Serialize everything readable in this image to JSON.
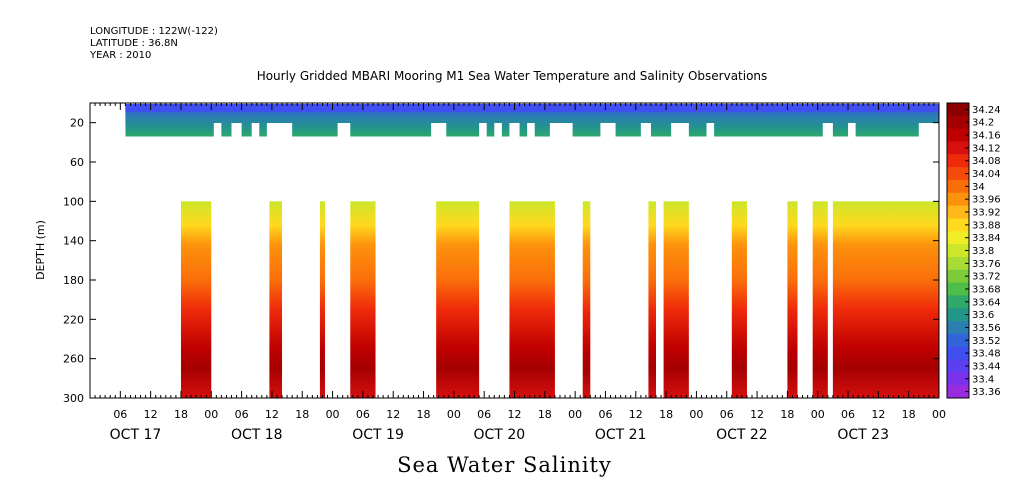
{
  "header": {
    "longitude": "LONGITUDE : 122W(-122)",
    "latitude": "LATITUDE : 36.8N",
    "year": "YEAR : 2010",
    "title": "Hourly Gridded MBARI Mooring M1 Sea Water Temperature and Salinity Observations"
  },
  "chart_data": {
    "type": "heatmap",
    "title": "Hourly Gridded MBARI Mooring M1 Sea Water Temperature and Salinity Observations",
    "xlabel": "Sea Water Salinity",
    "ylabel": "DEPTH (m)",
    "ylim": [
      300,
      0
    ],
    "y_ticks": [
      20,
      60,
      100,
      140,
      180,
      220,
      260,
      300
    ],
    "x_range_hours": [
      0,
      168
    ],
    "hour_ticks": [
      "06",
      "12",
      "18",
      "00",
      "06",
      "12",
      "18",
      "00",
      "06",
      "12",
      "18",
      "00",
      "06",
      "12",
      "18",
      "00",
      "06",
      "12",
      "18",
      "00",
      "06",
      "12",
      "18",
      "00",
      "06",
      "12",
      "18",
      "00"
    ],
    "days": [
      "OCT 17",
      "OCT 18",
      "OCT 19",
      "OCT 20",
      "OCT 21",
      "OCT 22",
      "OCT 23"
    ],
    "colorbar": {
      "labels": [
        "34.24",
        "34.2",
        "34.16",
        "34.12",
        "34.08",
        "34.04",
        "34",
        "33.96",
        "33.92",
        "33.88",
        "33.84",
        "33.8",
        "33.76",
        "33.72",
        "33.68",
        "33.64",
        "33.6",
        "33.56",
        "33.52",
        "33.48",
        "33.44",
        "33.4",
        "33.36"
      ],
      "colors": [
        "#8b0000",
        "#a50000",
        "#be0000",
        "#d70f0f",
        "#ef2a0a",
        "#f54b0a",
        "#fa6e0a",
        "#fd930d",
        "#ffb71a",
        "#ffd91e",
        "#f0ed24",
        "#cde62a",
        "#a8dc35",
        "#7ccc3a",
        "#4fbd4a",
        "#2fa86a",
        "#23968a",
        "#2a7fb0",
        "#2f65d8",
        "#3f4ff0",
        "#5a40f0",
        "#7a33ea",
        "#9a2ce0"
      ]
    },
    "surface_layer": {
      "depth_range": [
        10,
        30
      ],
      "missing_hour_ranges": [
        [
          0,
          7
        ],
        [
          5,
          7
        ],
        [
          24.5,
          26
        ],
        [
          28,
          30
        ],
        [
          32,
          33.5
        ],
        [
          35,
          40
        ],
        [
          49,
          51.5
        ],
        [
          67.5,
          70.5
        ],
        [
          77,
          78.5
        ],
        [
          80,
          81.5
        ],
        [
          83,
          85
        ],
        [
          86.5,
          88
        ],
        [
          91,
          95.5
        ],
        [
          101,
          104
        ],
        [
          109,
          111
        ],
        [
          115,
          118.5
        ],
        [
          122,
          123.5
        ],
        [
          145,
          147
        ],
        [
          150,
          151.5
        ],
        [
          164,
          168
        ]
      ]
    },
    "deep_layer": {
      "depth_range": [
        100,
        300
      ],
      "data_hour_ranges": [
        [
          18,
          24
        ],
        [
          35.5,
          38
        ],
        [
          45.5,
          46.5
        ],
        [
          51.5,
          56.5
        ],
        [
          68.5,
          77
        ],
        [
          83,
          92
        ],
        [
          97.5,
          99
        ],
        [
          110.5,
          112
        ],
        [
          113.5,
          118.5
        ],
        [
          127,
          130
        ],
        [
          138,
          140
        ],
        [
          143,
          146
        ],
        [
          147,
          168
        ]
      ]
    }
  }
}
